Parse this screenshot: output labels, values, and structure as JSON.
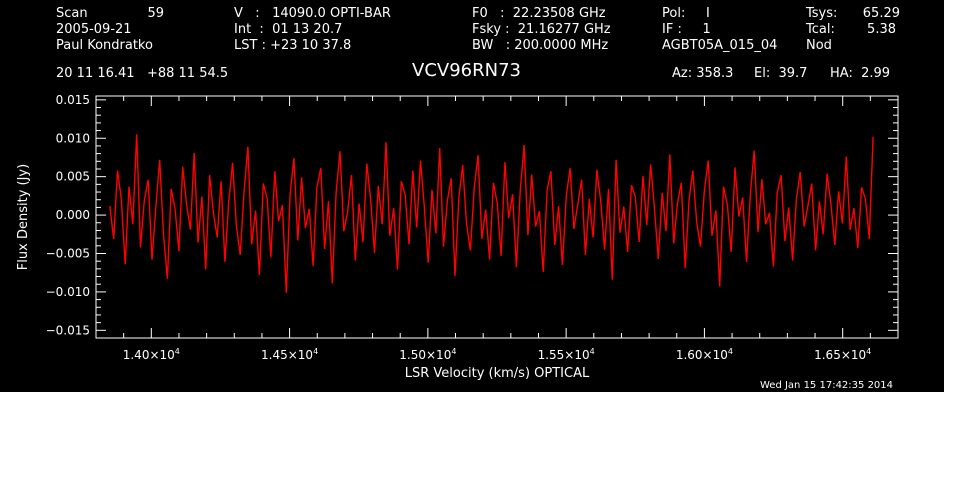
{
  "header": {
    "row1": {
      "scan_label": "Scan",
      "scan_number": "59",
      "velocity": "V   :   14090.0 OPTI-BAR",
      "f0": "F0   :  22.23508 GHz",
      "pol": "Pol:     I",
      "tsys_label": "Tsys:",
      "tsys_value": "65.29"
    },
    "row2": {
      "date": "2005-09-21",
      "int": "Int  :  01 13 20.7",
      "fsky": "Fsky :  21.16277 GHz",
      "if": "IF :     1",
      "tcal_label": "Tcal:",
      "tcal_value": "5.38"
    },
    "row3": {
      "observer": "Paul Kondratko",
      "lst": "LST : +23 10 37.8",
      "bw": "BW   : 200.0000 MHz",
      "project": "AGBT05A_015_04",
      "procedure": "Nod"
    },
    "row4": {
      "coordinates": "20 11 16.41   +88 11 54.5",
      "source": "VCV96RN73",
      "az": "Az: 358.3",
      "el": "El:  39.7",
      "ha": "HA:  2.99"
    }
  },
  "footer": {
    "timestamp": "Wed Jan 15 17:42:35 2014"
  },
  "colors": {
    "background": "#000000",
    "axes": "#ffffff",
    "spectrum": "#ff0000"
  },
  "chart_data": {
    "type": "line",
    "xlabel": "LSR Velocity (km/s) OPTICAL",
    "ylabel": "Flux Density (Jy)",
    "xlim": [
      13800,
      16700
    ],
    "ylim": [
      -0.016,
      0.0155
    ],
    "x_ticks": [
      {
        "value": 14000,
        "label": "1.40×10",
        "exp": "4"
      },
      {
        "value": 14500,
        "label": "1.45×10",
        "exp": "4"
      },
      {
        "value": 15000,
        "label": "1.50×10",
        "exp": "4"
      },
      {
        "value": 15500,
        "label": "1.55×10",
        "exp": "4"
      },
      {
        "value": 16000,
        "label": "1.60×10",
        "exp": "4"
      },
      {
        "value": 16500,
        "label": "1.65×10",
        "exp": "4"
      }
    ],
    "y_ticks": [
      {
        "value": 0.015,
        "label": "0.015"
      },
      {
        "value": 0.01,
        "label": "0.010"
      },
      {
        "value": 0.005,
        "label": "0.005"
      },
      {
        "value": 0.0,
        "label": "0.000"
      },
      {
        "value": -0.005,
        "label": "−0.005"
      },
      {
        "value": -0.01,
        "label": "−0.010"
      },
      {
        "value": -0.015,
        "label": "−0.015"
      }
    ],
    "series": [
      {
        "x_start": 13850,
        "x_end": 16610,
        "values": [
          0.0012,
          -0.0031,
          0.0058,
          0.0021,
          -0.0064,
          0.0037,
          -0.0012,
          0.0105,
          -0.0042,
          0.0019,
          0.0046,
          -0.0058,
          0.0011,
          0.0072,
          -0.0025,
          -0.0083,
          0.0034,
          0.0009,
          -0.0047,
          0.0063,
          0.0015,
          -0.0019,
          0.0081,
          -0.0036,
          0.0024,
          -0.0071,
          0.0052,
          0.0003,
          -0.0029,
          0.0044,
          -0.0061,
          0.0017,
          0.0068,
          -0.0014,
          -0.0052,
          0.0031,
          0.0089,
          -0.0038,
          0.0006,
          -0.0078,
          0.0041,
          0.0022,
          -0.0055,
          0.0057,
          -0.0008,
          0.0013,
          -0.0101,
          0.0027,
          0.0074,
          -0.0033,
          0.0049,
          -0.0017,
          0.0008,
          -0.0066,
          0.0036,
          0.0061,
          -0.0044,
          0.0018,
          -0.0089,
          0.0029,
          0.0083,
          -0.0021,
          0.0004,
          0.0052,
          -0.0059,
          0.0015,
          -0.0035,
          0.0067,
          0.0021,
          -0.0049,
          0.0038,
          -0.0012,
          0.0095,
          -0.0027,
          0.0009,
          -0.0071,
          0.0044,
          0.0026,
          -0.0038,
          0.0058,
          -0.0016,
          0.0071,
          0.0011,
          -0.0062,
          0.0033,
          -0.0024,
          0.0087,
          -0.0041,
          0.0019,
          0.0048,
          -0.0079,
          0.0023,
          0.0065,
          -0.0011,
          -0.0046,
          0.0035,
          0.0078,
          -0.0031,
          0.0007,
          -0.0058,
          0.0042,
          0.0016,
          -0.0053,
          0.0069,
          -0.0004,
          0.0027,
          -0.0068,
          0.0031,
          0.0091,
          -0.0026,
          0.0053,
          -0.0015,
          0.0005,
          -0.0074,
          0.0032,
          0.0057,
          -0.0039,
          0.0012,
          -0.0065,
          0.0025,
          0.0061,
          -0.0018,
          0.0014,
          0.0046,
          -0.0052,
          0.0021,
          -0.0029,
          0.0059,
          0.0017,
          -0.0045,
          0.0034,
          -0.0084,
          0.0072,
          -0.0023,
          0.0011,
          -0.0048,
          0.0039,
          0.0024,
          -0.0035,
          0.0051,
          -0.0013,
          0.0066,
          0.0008,
          -0.0057,
          0.0029,
          -0.0021,
          0.0079,
          -0.0037,
          0.0016,
          0.0042,
          -0.0069,
          0.0019,
          0.0058,
          -0.0009,
          -0.0041,
          0.0031,
          0.0071,
          -0.0027,
          0.0006,
          -0.0093,
          0.0037,
          0.0013,
          -0.0048,
          0.0062,
          -0.0002,
          0.0023,
          -0.0061,
          0.0028,
          0.0084,
          -0.0022,
          0.0047,
          -0.0012,
          0.0003,
          -0.0067,
          0.0029,
          0.0052,
          -0.0034,
          0.001,
          -0.0059,
          0.0021,
          0.0056,
          -0.0015,
          0.0012,
          0.0041,
          -0.0046,
          0.0018,
          -0.0025,
          0.0054,
          0.0015,
          -0.0039,
          0.0031,
          -0.0011,
          0.0076,
          -0.0019,
          0.0009,
          -0.0043,
          0.0036,
          0.0021,
          -0.0031,
          0.0102
        ]
      }
    ]
  }
}
